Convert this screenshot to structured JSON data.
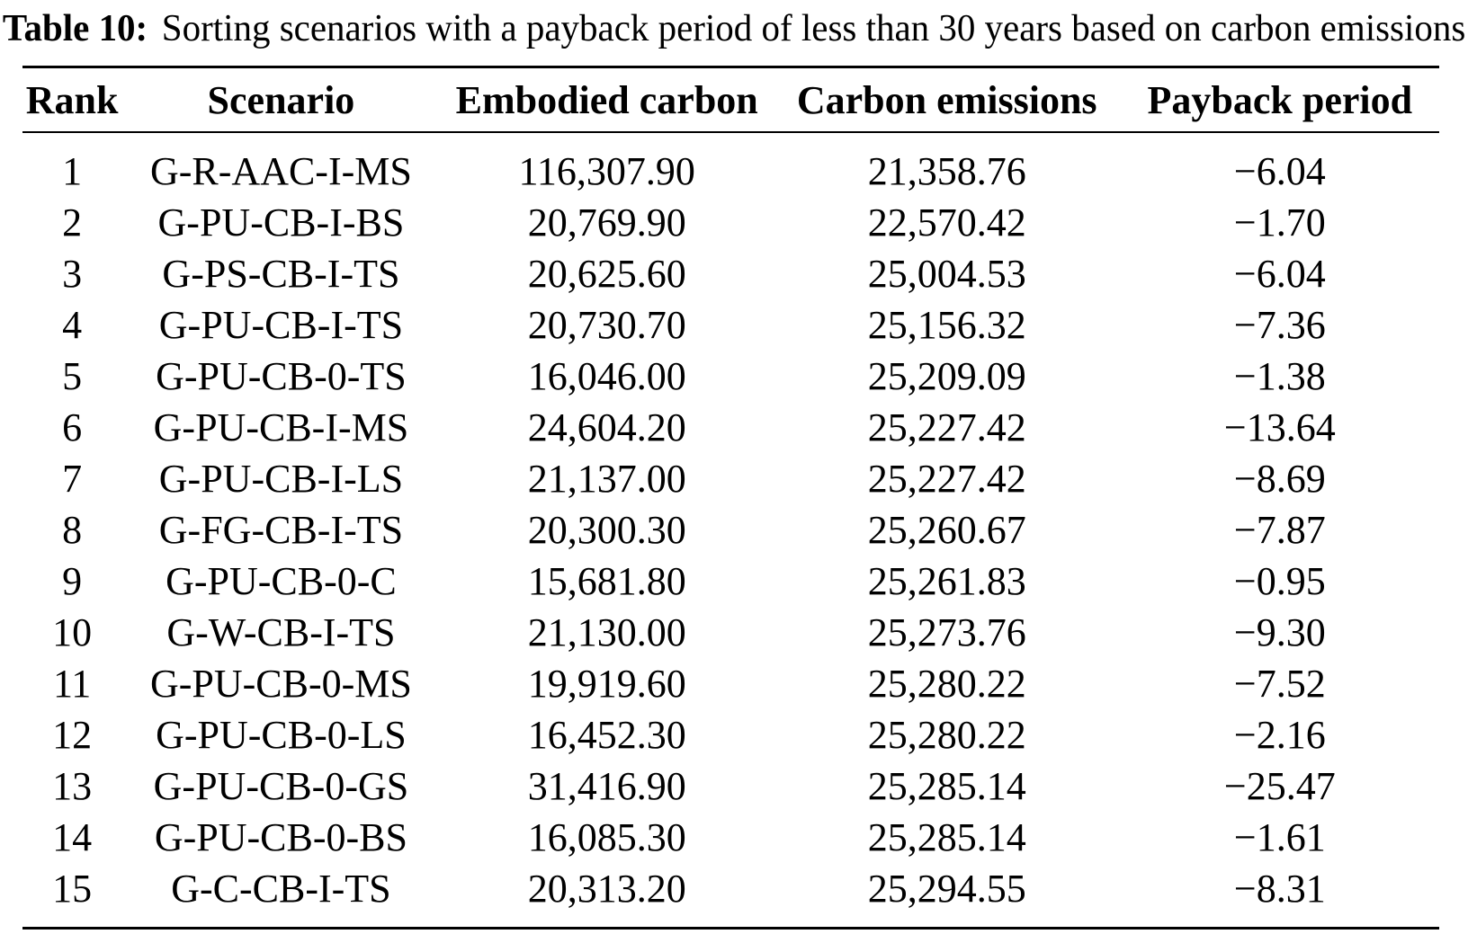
{
  "caption": {
    "label": "Table 10:",
    "text": "Sorting scenarios with a payback period of less than 30 years based on carbon emissions"
  },
  "table": {
    "headers": [
      "Rank",
      "Scenario",
      "Embodied carbon",
      "Carbon emissions",
      "Payback period"
    ],
    "rows": [
      [
        "1",
        "G-R-AAC-I-MS",
        "116,307.90",
        "21,358.76",
        "−6.04"
      ],
      [
        "2",
        "G-PU-CB-I-BS",
        "20,769.90",
        "22,570.42",
        "−1.70"
      ],
      [
        "3",
        "G-PS-CB-I-TS",
        "20,625.60",
        "25,004.53",
        "−6.04"
      ],
      [
        "4",
        "G-PU-CB-I-TS",
        "20,730.70",
        "25,156.32",
        "−7.36"
      ],
      [
        "5",
        "G-PU-CB-0-TS",
        "16,046.00",
        "25,209.09",
        "−1.38"
      ],
      [
        "6",
        "G-PU-CB-I-MS",
        "24,604.20",
        "25,227.42",
        "−13.64"
      ],
      [
        "7",
        "G-PU-CB-I-LS",
        "21,137.00",
        "25,227.42",
        "−8.69"
      ],
      [
        "8",
        "G-FG-CB-I-TS",
        "20,300.30",
        "25,260.67",
        "−7.87"
      ],
      [
        "9",
        "G-PU-CB-0-C",
        "15,681.80",
        "25,261.83",
        "−0.95"
      ],
      [
        "10",
        "G-W-CB-I-TS",
        "21,130.00",
        "25,273.76",
        "−9.30"
      ],
      [
        "11",
        "G-PU-CB-0-MS",
        "19,919.60",
        "25,280.22",
        "−7.52"
      ],
      [
        "12",
        "G-PU-CB-0-LS",
        "16,452.30",
        "25,280.22",
        "−2.16"
      ],
      [
        "13",
        "G-PU-CB-0-GS",
        "31,416.90",
        "25,285.14",
        "−25.47"
      ],
      [
        "14",
        "G-PU-CB-0-BS",
        "16,085.30",
        "25,285.14",
        "−1.61"
      ],
      [
        "15",
        "G-C-CB-I-TS",
        "20,313.20",
        "25,294.55",
        "−8.31"
      ]
    ]
  }
}
